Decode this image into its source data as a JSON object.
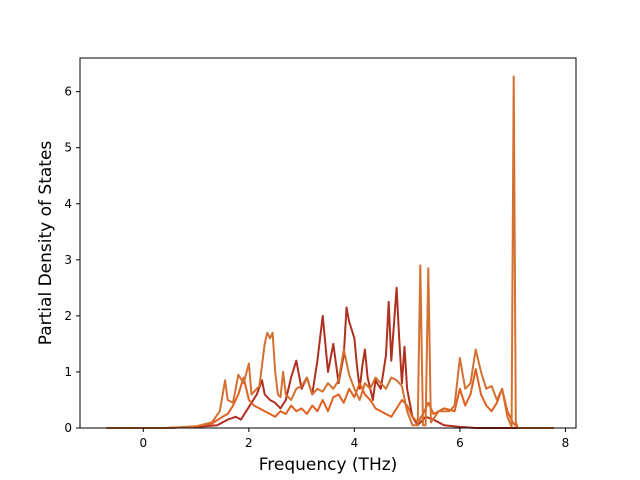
{
  "chart_data": {
    "type": "line",
    "title": "",
    "xlabel": "Frequency (THz)",
    "ylabel": "Partial Density of States",
    "xlim": [
      -1.2,
      8.2
    ],
    "ylim": [
      0,
      6.6
    ],
    "xticks": [
      0,
      2,
      4,
      6,
      8
    ],
    "yticks": [
      0,
      1,
      2,
      3,
      4,
      5,
      6
    ],
    "grid": false,
    "legend": "none",
    "series": [
      {
        "color": "#b03020",
        "points": [
          [
            -0.7,
            0
          ],
          [
            0.4,
            0
          ],
          [
            1.0,
            0.02
          ],
          [
            1.4,
            0.05
          ],
          [
            1.6,
            0.15
          ],
          [
            1.75,
            0.2
          ],
          [
            1.85,
            0.15
          ],
          [
            1.95,
            0.3
          ],
          [
            2.05,
            0.45
          ],
          [
            2.15,
            0.6
          ],
          [
            2.25,
            0.85
          ],
          [
            2.3,
            0.6
          ],
          [
            2.4,
            0.5
          ],
          [
            2.5,
            0.45
          ],
          [
            2.6,
            0.35
          ],
          [
            2.7,
            0.5
          ],
          [
            2.8,
            0.9
          ],
          [
            2.9,
            1.2
          ],
          [
            3.0,
            0.7
          ],
          [
            3.1,
            0.9
          ],
          [
            3.2,
            0.6
          ],
          [
            3.3,
            1.2
          ],
          [
            3.4,
            2.0
          ],
          [
            3.5,
            1.0
          ],
          [
            3.6,
            1.5
          ],
          [
            3.7,
            0.8
          ],
          [
            3.8,
            1.3
          ],
          [
            3.85,
            2.15
          ],
          [
            3.9,
            1.9
          ],
          [
            4.0,
            1.6
          ],
          [
            4.05,
            1.1
          ],
          [
            4.1,
            0.7
          ],
          [
            4.15,
            1.1
          ],
          [
            4.2,
            1.4
          ],
          [
            4.25,
            0.9
          ],
          [
            4.35,
            0.5
          ],
          [
            4.4,
            0.85
          ],
          [
            4.5,
            0.7
          ],
          [
            4.6,
            1.3
          ],
          [
            4.65,
            2.25
          ],
          [
            4.7,
            1.2
          ],
          [
            4.8,
            2.5
          ],
          [
            4.85,
            1.6
          ],
          [
            4.9,
            0.8
          ],
          [
            4.95,
            1.45
          ],
          [
            5.0,
            0.7
          ],
          [
            5.1,
            0.2
          ],
          [
            5.2,
            0.05
          ],
          [
            5.35,
            0.2
          ],
          [
            5.5,
            0.15
          ],
          [
            5.7,
            0.05
          ],
          [
            6.0,
            0.02
          ],
          [
            6.3,
            0
          ],
          [
            7.78,
            0
          ]
        ]
      },
      {
        "color": "#e06020",
        "points": [
          [
            -0.7,
            0
          ],
          [
            0.5,
            0
          ],
          [
            1.0,
            0.03
          ],
          [
            1.3,
            0.08
          ],
          [
            1.5,
            0.2
          ],
          [
            1.6,
            0.25
          ],
          [
            1.7,
            0.4
          ],
          [
            1.8,
            0.6
          ],
          [
            1.9,
            0.9
          ],
          [
            2.0,
            0.5
          ],
          [
            2.1,
            0.4
          ],
          [
            2.2,
            0.35
          ],
          [
            2.3,
            0.3
          ],
          [
            2.4,
            0.25
          ],
          [
            2.5,
            0.2
          ],
          [
            2.6,
            0.3
          ],
          [
            2.7,
            0.25
          ],
          [
            2.8,
            0.4
          ],
          [
            2.9,
            0.3
          ],
          [
            3.0,
            0.35
          ],
          [
            3.1,
            0.25
          ],
          [
            3.2,
            0.4
          ],
          [
            3.3,
            0.3
          ],
          [
            3.4,
            0.5
          ],
          [
            3.5,
            0.3
          ],
          [
            3.6,
            0.55
          ],
          [
            3.7,
            0.6
          ],
          [
            3.8,
            0.45
          ],
          [
            3.9,
            0.7
          ],
          [
            4.0,
            0.55
          ],
          [
            4.1,
            0.8
          ],
          [
            4.2,
            0.6
          ],
          [
            4.3,
            0.5
          ],
          [
            4.4,
            0.35
          ],
          [
            4.5,
            0.3
          ],
          [
            4.6,
            0.25
          ],
          [
            4.7,
            0.2
          ],
          [
            4.8,
            0.35
          ],
          [
            4.9,
            0.5
          ],
          [
            5.0,
            0.4
          ],
          [
            5.1,
            0.2
          ],
          [
            5.2,
            0.1
          ],
          [
            5.3,
            0.25
          ],
          [
            5.4,
            0.45
          ],
          [
            5.5,
            0.25
          ],
          [
            5.7,
            0.35
          ],
          [
            5.9,
            0.3
          ],
          [
            6.0,
            0.7
          ],
          [
            6.1,
            0.4
          ],
          [
            6.2,
            0.6
          ],
          [
            6.3,
            1.05
          ],
          [
            6.4,
            0.6
          ],
          [
            6.5,
            0.4
          ],
          [
            6.6,
            0.3
          ],
          [
            6.7,
            0.45
          ],
          [
            6.8,
            0.7
          ],
          [
            6.9,
            0.3
          ],
          [
            7.0,
            0.1
          ],
          [
            7.1,
            0
          ],
          [
            7.78,
            0
          ]
        ]
      },
      {
        "color": "#d47030",
        "points": [
          [
            -0.7,
            0
          ],
          [
            0.5,
            0
          ],
          [
            1.0,
            0.03
          ],
          [
            1.3,
            0.1
          ],
          [
            1.45,
            0.3
          ],
          [
            1.55,
            0.85
          ],
          [
            1.6,
            0.5
          ],
          [
            1.7,
            0.45
          ],
          [
            1.8,
            0.95
          ],
          [
            1.9,
            0.8
          ],
          [
            2.0,
            1.15
          ],
          [
            2.05,
            0.6
          ],
          [
            2.2,
            0.75
          ],
          [
            2.3,
            1.5
          ],
          [
            2.35,
            1.7
          ],
          [
            2.4,
            1.6
          ],
          [
            2.45,
            1.7
          ],
          [
            2.5,
            1.0
          ],
          [
            2.55,
            0.6
          ],
          [
            2.6,
            0.55
          ],
          [
            2.65,
            1.0
          ],
          [
            2.7,
            0.6
          ],
          [
            2.8,
            0.5
          ],
          [
            2.9,
            0.7
          ],
          [
            3.0,
            0.75
          ],
          [
            3.1,
            0.9
          ],
          [
            3.2,
            0.6
          ],
          [
            3.3,
            0.7
          ],
          [
            3.4,
            0.65
          ],
          [
            3.5,
            0.8
          ],
          [
            3.6,
            0.7
          ],
          [
            3.7,
            0.85
          ],
          [
            3.8,
            1.4
          ],
          [
            3.9,
            0.95
          ],
          [
            4.0,
            0.7
          ],
          [
            4.1,
            0.5
          ],
          [
            4.2,
            0.8
          ],
          [
            4.3,
            0.7
          ],
          [
            4.4,
            0.9
          ],
          [
            4.5,
            0.8
          ],
          [
            4.6,
            0.7
          ],
          [
            4.7,
            0.9
          ],
          [
            4.8,
            0.85
          ],
          [
            4.9,
            0.75
          ],
          [
            5.0,
            0.3
          ],
          [
            5.1,
            0.05
          ],
          [
            5.2,
            0.05
          ],
          [
            5.25,
            2.9
          ],
          [
            5.3,
            0.05
          ],
          [
            5.35,
            0.05
          ],
          [
            5.4,
            2.85
          ],
          [
            5.45,
            0.1
          ],
          [
            5.6,
            0.3
          ],
          [
            5.8,
            0.3
          ],
          [
            5.9,
            0.4
          ],
          [
            6.0,
            1.25
          ],
          [
            6.1,
            0.7
          ],
          [
            6.2,
            0.8
          ],
          [
            6.3,
            1.4
          ],
          [
            6.4,
            1.0
          ],
          [
            6.5,
            0.7
          ],
          [
            6.6,
            0.75
          ],
          [
            6.7,
            0.5
          ],
          [
            6.8,
            0.7
          ],
          [
            6.9,
            0.2
          ],
          [
            6.98,
            0.02
          ],
          [
            7.02,
            6.27
          ],
          [
            7.06,
            0.1
          ],
          [
            7.1,
            0
          ],
          [
            7.78,
            0
          ]
        ]
      }
    ]
  }
}
